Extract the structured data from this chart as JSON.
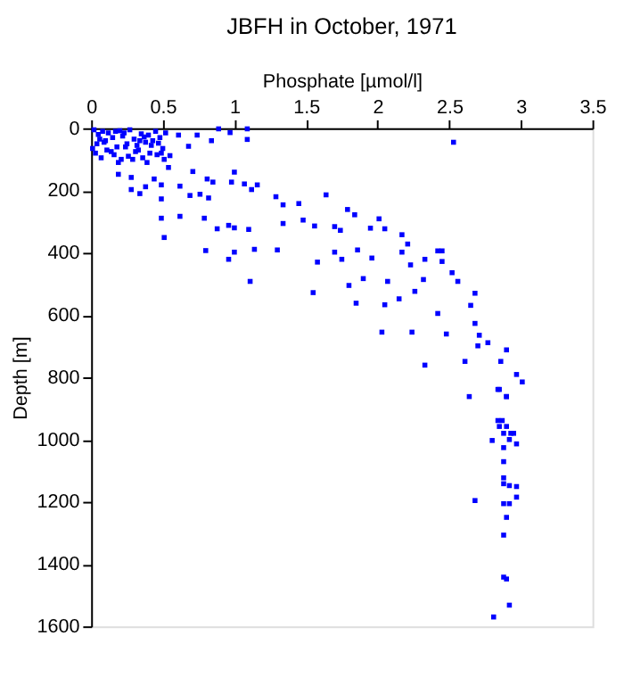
{
  "chart_data": {
    "type": "scatter",
    "title": "JBFH in October, 1971",
    "xlabel": "Phosphate [µmol/l]",
    "ylabel": "Depth [m]",
    "xlim": [
      0,
      3.5
    ],
    "xticks": [
      0,
      0.5,
      1,
      1.5,
      2,
      2.5,
      3,
      3.5
    ],
    "ylim": [
      1600,
      0
    ],
    "yticks": [
      0,
      200,
      400,
      600,
      800,
      1000,
      1200,
      1400,
      1600
    ],
    "grid": false,
    "marker": "square",
    "series": [
      {
        "color": "#0000ff",
        "x": [
          0.02,
          0.05,
          0.08,
          0.1,
          0.12,
          0.15,
          0.18,
          0.2,
          0.22,
          0.25,
          0.3,
          0.33,
          0.35,
          0.38,
          0.4,
          0.42,
          0.45,
          0.48,
          0.5,
          0.52,
          0.03,
          0.07,
          0.11,
          0.16,
          0.21,
          0.26,
          0.31,
          0.36,
          0.41,
          0.46,
          0.51,
          0.04,
          0.09,
          0.14,
          0.19,
          0.24,
          0.29,
          0.34,
          0.39,
          0.49,
          0.06,
          0.23,
          0.32,
          0.43,
          0.01,
          0.17,
          0.27,
          0.37,
          0.47,
          0.55,
          0.61,
          0.68,
          0.74,
          0.84,
          0.89,
          0.97,
          1.09,
          1.09,
          2.53,
          0.19,
          0.28,
          0.44,
          0.54,
          0.71,
          0.81,
          1.0,
          0.85,
          0.98,
          1.07,
          1.12,
          0.38,
          0.49,
          0.62,
          1.16,
          0.28,
          0.34,
          0.49,
          0.69,
          0.76,
          0.82,
          1.29,
          1.34,
          1.45,
          1.64,
          1.0,
          1.1,
          0.88,
          0.96,
          0.79,
          0.62,
          0.49,
          0.51,
          1.34,
          1.48,
          1.56,
          1.7,
          1.74,
          1.95,
          1.79,
          1.84,
          2.01,
          2.05,
          2.17,
          2.21,
          2.42,
          2.45,
          1.3,
          1.14,
          1.0,
          0.8,
          0.96,
          1.11,
          1.58,
          1.75,
          1.86,
          1.7,
          1.96,
          2.17,
          2.23,
          2.33,
          2.45,
          2.52,
          2.56,
          2.32,
          2.07,
          1.9,
          1.8,
          1.85,
          1.55,
          2.26,
          2.15,
          2.05,
          2.42,
          2.68,
          2.65,
          2.68,
          2.71,
          2.77,
          2.7,
          2.03,
          2.24,
          2.48,
          2.9,
          2.86,
          2.61,
          2.33,
          2.97,
          3.01,
          2.85,
          2.9,
          2.64,
          2.84,
          2.9,
          2.84,
          2.87,
          2.85,
          2.9,
          2.88,
          2.93,
          2.95,
          2.92,
          2.8,
          2.97,
          2.88,
          2.88,
          2.88,
          2.88,
          2.92,
          2.97,
          2.68,
          2.97,
          2.88,
          2.92,
          2.9,
          2.88,
          2.88,
          2.9,
          2.92,
          2.81
        ],
        "values": [
          5,
          20,
          10,
          40,
          15,
          30,
          60,
          8,
          25,
          50,
          35,
          70,
          18,
          45,
          22,
          55,
          10,
          30,
          65,
          15,
          80,
          95,
          70,
          85,
          100,
          90,
          75,
          95,
          80,
          85,
          100,
          50,
          45,
          75,
          110,
          60,
          100,
          40,
          110,
          80,
          35,
          15,
          55,
          40,
          65,
          10,
          5,
          28,
          48,
          88,
          22,
          58,
          22,
          40,
          2,
          14,
          2,
          36,
          45,
          148,
          158,
          163,
          126,
          139,
          163,
          141,
          173,
          173,
          179,
          197,
          188,
          182,
          186,
          182,
          197,
          210,
          227,
          216,
          212,
          224,
          220,
          246,
          242,
          214,
          320,
          325,
          323,
          312,
          289,
          283,
          289,
          351,
          306,
          295,
          314,
          316,
          328,
          321,
          261,
          278,
          291,
          323,
          342,
          372,
          394,
          394,
          391,
          389,
          398,
          393,
          421,
          492,
          430,
          421,
          391,
          398,
          417,
          398,
          439,
          421,
          428,
          464,
          492,
          486,
          492,
          483,
          505,
          562,
          528,
          524,
          548,
          567,
          595,
          530,
          569,
          627,
          665,
          689,
          699,
          655,
          655,
          661,
          712,
          749,
          749,
          761,
          791,
          815,
          839,
          862,
          862,
          839,
          862,
          939,
          939,
          958,
          958,
          980,
          980,
          980,
          1000,
          1003,
          1014,
          1026,
          1071,
          1123,
          1142,
          1148,
          1151,
          1196,
          1185,
          1206,
          1206,
          1250,
          1307,
          1442,
          1448,
          1532,
          1570
        ]
      }
    ]
  }
}
